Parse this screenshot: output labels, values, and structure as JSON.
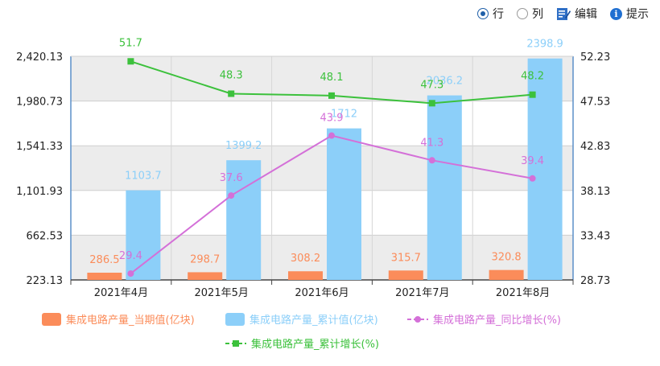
{
  "toolbar": {
    "row_label": "行",
    "col_label": "列",
    "edit_label": "编辑",
    "hint_label": "提示",
    "selected": "row"
  },
  "colors": {
    "current": "#fb8c5a",
    "cumulative": "#8ccff9",
    "yoy": "#d470d8",
    "cum_growth": "#3cc13c",
    "plot_bg_band": "#ececec",
    "axis": "#5b8fc9"
  },
  "chart_data": {
    "type": "bar",
    "categories": [
      "2021年4月",
      "2021年5月",
      "2021年6月",
      "2021年7月",
      "2021年8月"
    ],
    "y_left": {
      "ticks": [
        "223.13",
        "662.53",
        "1,101.93",
        "1,541.33",
        "1,980.73",
        "2,420.13"
      ],
      "range": [
        223.13,
        2420.13
      ]
    },
    "y_right": {
      "ticks": [
        "28.73",
        "33.43",
        "38.13",
        "42.83",
        "47.53",
        "52.23"
      ],
      "range": [
        28.73,
        52.23
      ]
    },
    "grid": true,
    "legend_position": "bottom",
    "series": [
      {
        "name": "集成电路产量_当期值(亿块)",
        "type": "bar",
        "axis": "left",
        "values": [
          286.5,
          298.7,
          308.2,
          315.7,
          320.8
        ],
        "labels": [
          "286.5",
          "298.7",
          "308.2",
          "315.7",
          "320.8"
        ]
      },
      {
        "name": "集成电路产量_累计值(亿块)",
        "type": "bar",
        "axis": "left",
        "values": [
          1103.7,
          1399.2,
          1712,
          2036.2,
          2398.9
        ],
        "labels": [
          "1103.7",
          "1399.2",
          "1712",
          "2036.2",
          "2398.9"
        ]
      },
      {
        "name": "集成电路产量_同比增长(%)",
        "type": "line",
        "axis": "right",
        "values": [
          29.4,
          37.6,
          43.9,
          41.3,
          39.4
        ],
        "labels": [
          "29.4",
          "37.6",
          "43.9",
          "41.3",
          "39.4"
        ]
      },
      {
        "name": "集成电路产量_累计增长(%)",
        "type": "line",
        "axis": "right",
        "values": [
          51.7,
          48.3,
          48.1,
          47.3,
          48.2
        ],
        "labels": [
          "51.7",
          "48.3",
          "48.1",
          "47.3",
          "48.2"
        ]
      }
    ]
  }
}
